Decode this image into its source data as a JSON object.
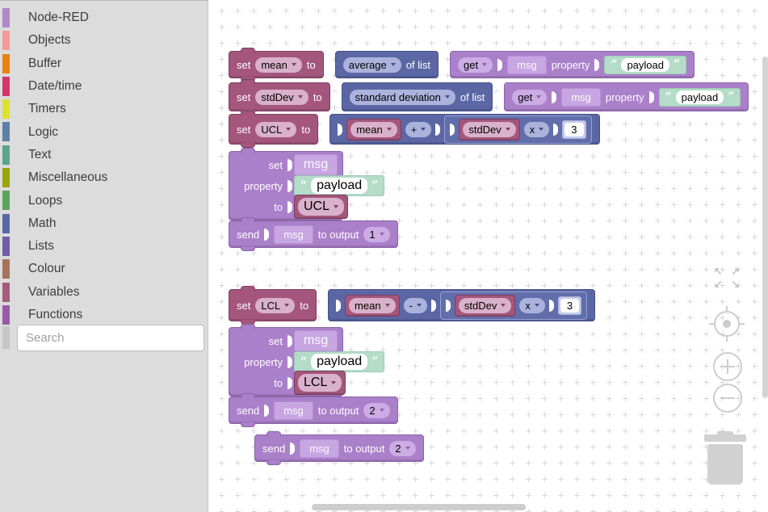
{
  "toolbox": {
    "search_placeholder": "Search",
    "categories": [
      {
        "label": "Node-RED",
        "color": "#b287c9"
      },
      {
        "label": "Objects",
        "color": "#f59a9a"
      },
      {
        "label": "Buffer",
        "color": "#e8820e"
      },
      {
        "label": "Date/time",
        "color": "#d4356b"
      },
      {
        "label": "Timers",
        "color": "#dde22b"
      },
      {
        "label": "Logic",
        "color": "#5b80a5"
      },
      {
        "label": "Text",
        "color": "#5ba58c"
      },
      {
        "label": "Miscellaneous",
        "color": "#9aa50b"
      },
      {
        "label": "Loops",
        "color": "#5ba55b"
      },
      {
        "label": "Math",
        "color": "#5b67a5"
      },
      {
        "label": "Lists",
        "color": "#745ba5"
      },
      {
        "label": "Colour",
        "color": "#a5745b"
      },
      {
        "label": "Variables",
        "color": "#a55b80"
      },
      {
        "label": "Functions",
        "color": "#995ba5"
      }
    ]
  },
  "labels": {
    "set": "set",
    "to": "to",
    "of_list": "of list",
    "get": "get",
    "msg": "msg",
    "property": "property",
    "send": "send",
    "to_output": "to output",
    "oq": "“",
    "cq": "”"
  },
  "blocks": {
    "b1": {
      "var": "mean",
      "func": "average",
      "prop": "payload"
    },
    "b2": {
      "var": "stdDev",
      "func": "standard deviation",
      "prop": "payload"
    },
    "b3": {
      "var": "UCL",
      "arg1": "mean",
      "op": "+",
      "arg2": "stdDev",
      "op2": "x",
      "num": "3"
    },
    "b4": {
      "prop": "payload",
      "value": "UCL"
    },
    "b5": {
      "output": "1"
    },
    "b6": {
      "var": "LCL",
      "arg1": "mean",
      "op": "-",
      "arg2": "stdDev",
      "op2": "x",
      "num": "3"
    },
    "b7": {
      "prop": "payload",
      "value": "LCL"
    },
    "b8": {
      "output": "2"
    },
    "b9": {
      "output": "2"
    }
  },
  "controls": {
    "fit": [
      "↖",
      "↗",
      "↙",
      "↘"
    ]
  },
  "palette": {
    "variables_block": "#a55b80",
    "math_block": "#5b67a5",
    "nodered_block": "#ab80ca",
    "text_shadow_block": "#b5dcca"
  }
}
